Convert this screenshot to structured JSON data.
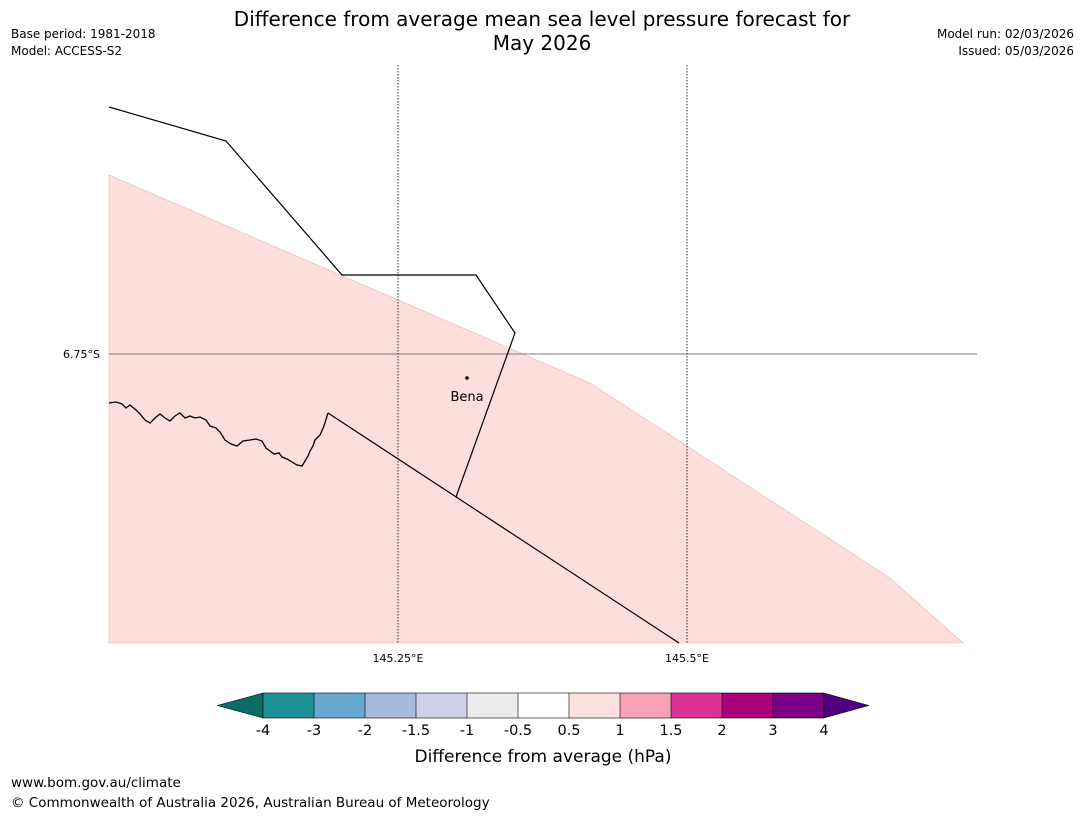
{
  "header": {
    "title_line1": "Difference from average mean sea level pressure forecast for",
    "title_line2": "May 2026",
    "base_period": "Base period: 1981-2018",
    "model": "Model: ACCESS-S2",
    "model_run": "Model run: 02/03/2026",
    "issued": "Issued: 05/03/2026"
  },
  "map": {
    "lat_labels": [
      "6.75°S"
    ],
    "lon_labels": [
      "145.25°E",
      "145.5°E"
    ],
    "place": "Bena",
    "fill_color": "#fcdedd"
  },
  "legend": {
    "title": "Difference from average (hPa)",
    "ticks": [
      "-4",
      "-3",
      "-2",
      "-1.5",
      "-1",
      "-0.5",
      "0.5",
      "1",
      "1.5",
      "2",
      "3",
      "4"
    ],
    "colors": [
      "#086d64",
      "#1c9095",
      "#67a8cf",
      "#a6badc",
      "#d0d0e6",
      "#ececef",
      "#ffffff",
      "#fde1df",
      "#f8a0b6",
      "#dc3296",
      "#ab007d",
      "#7c0083",
      "#50007e"
    ]
  },
  "footer": {
    "url": "www.bom.gov.au/climate",
    "copyright": "© Commonwealth of Australia 2026, Australian Bureau of Meteorology"
  }
}
